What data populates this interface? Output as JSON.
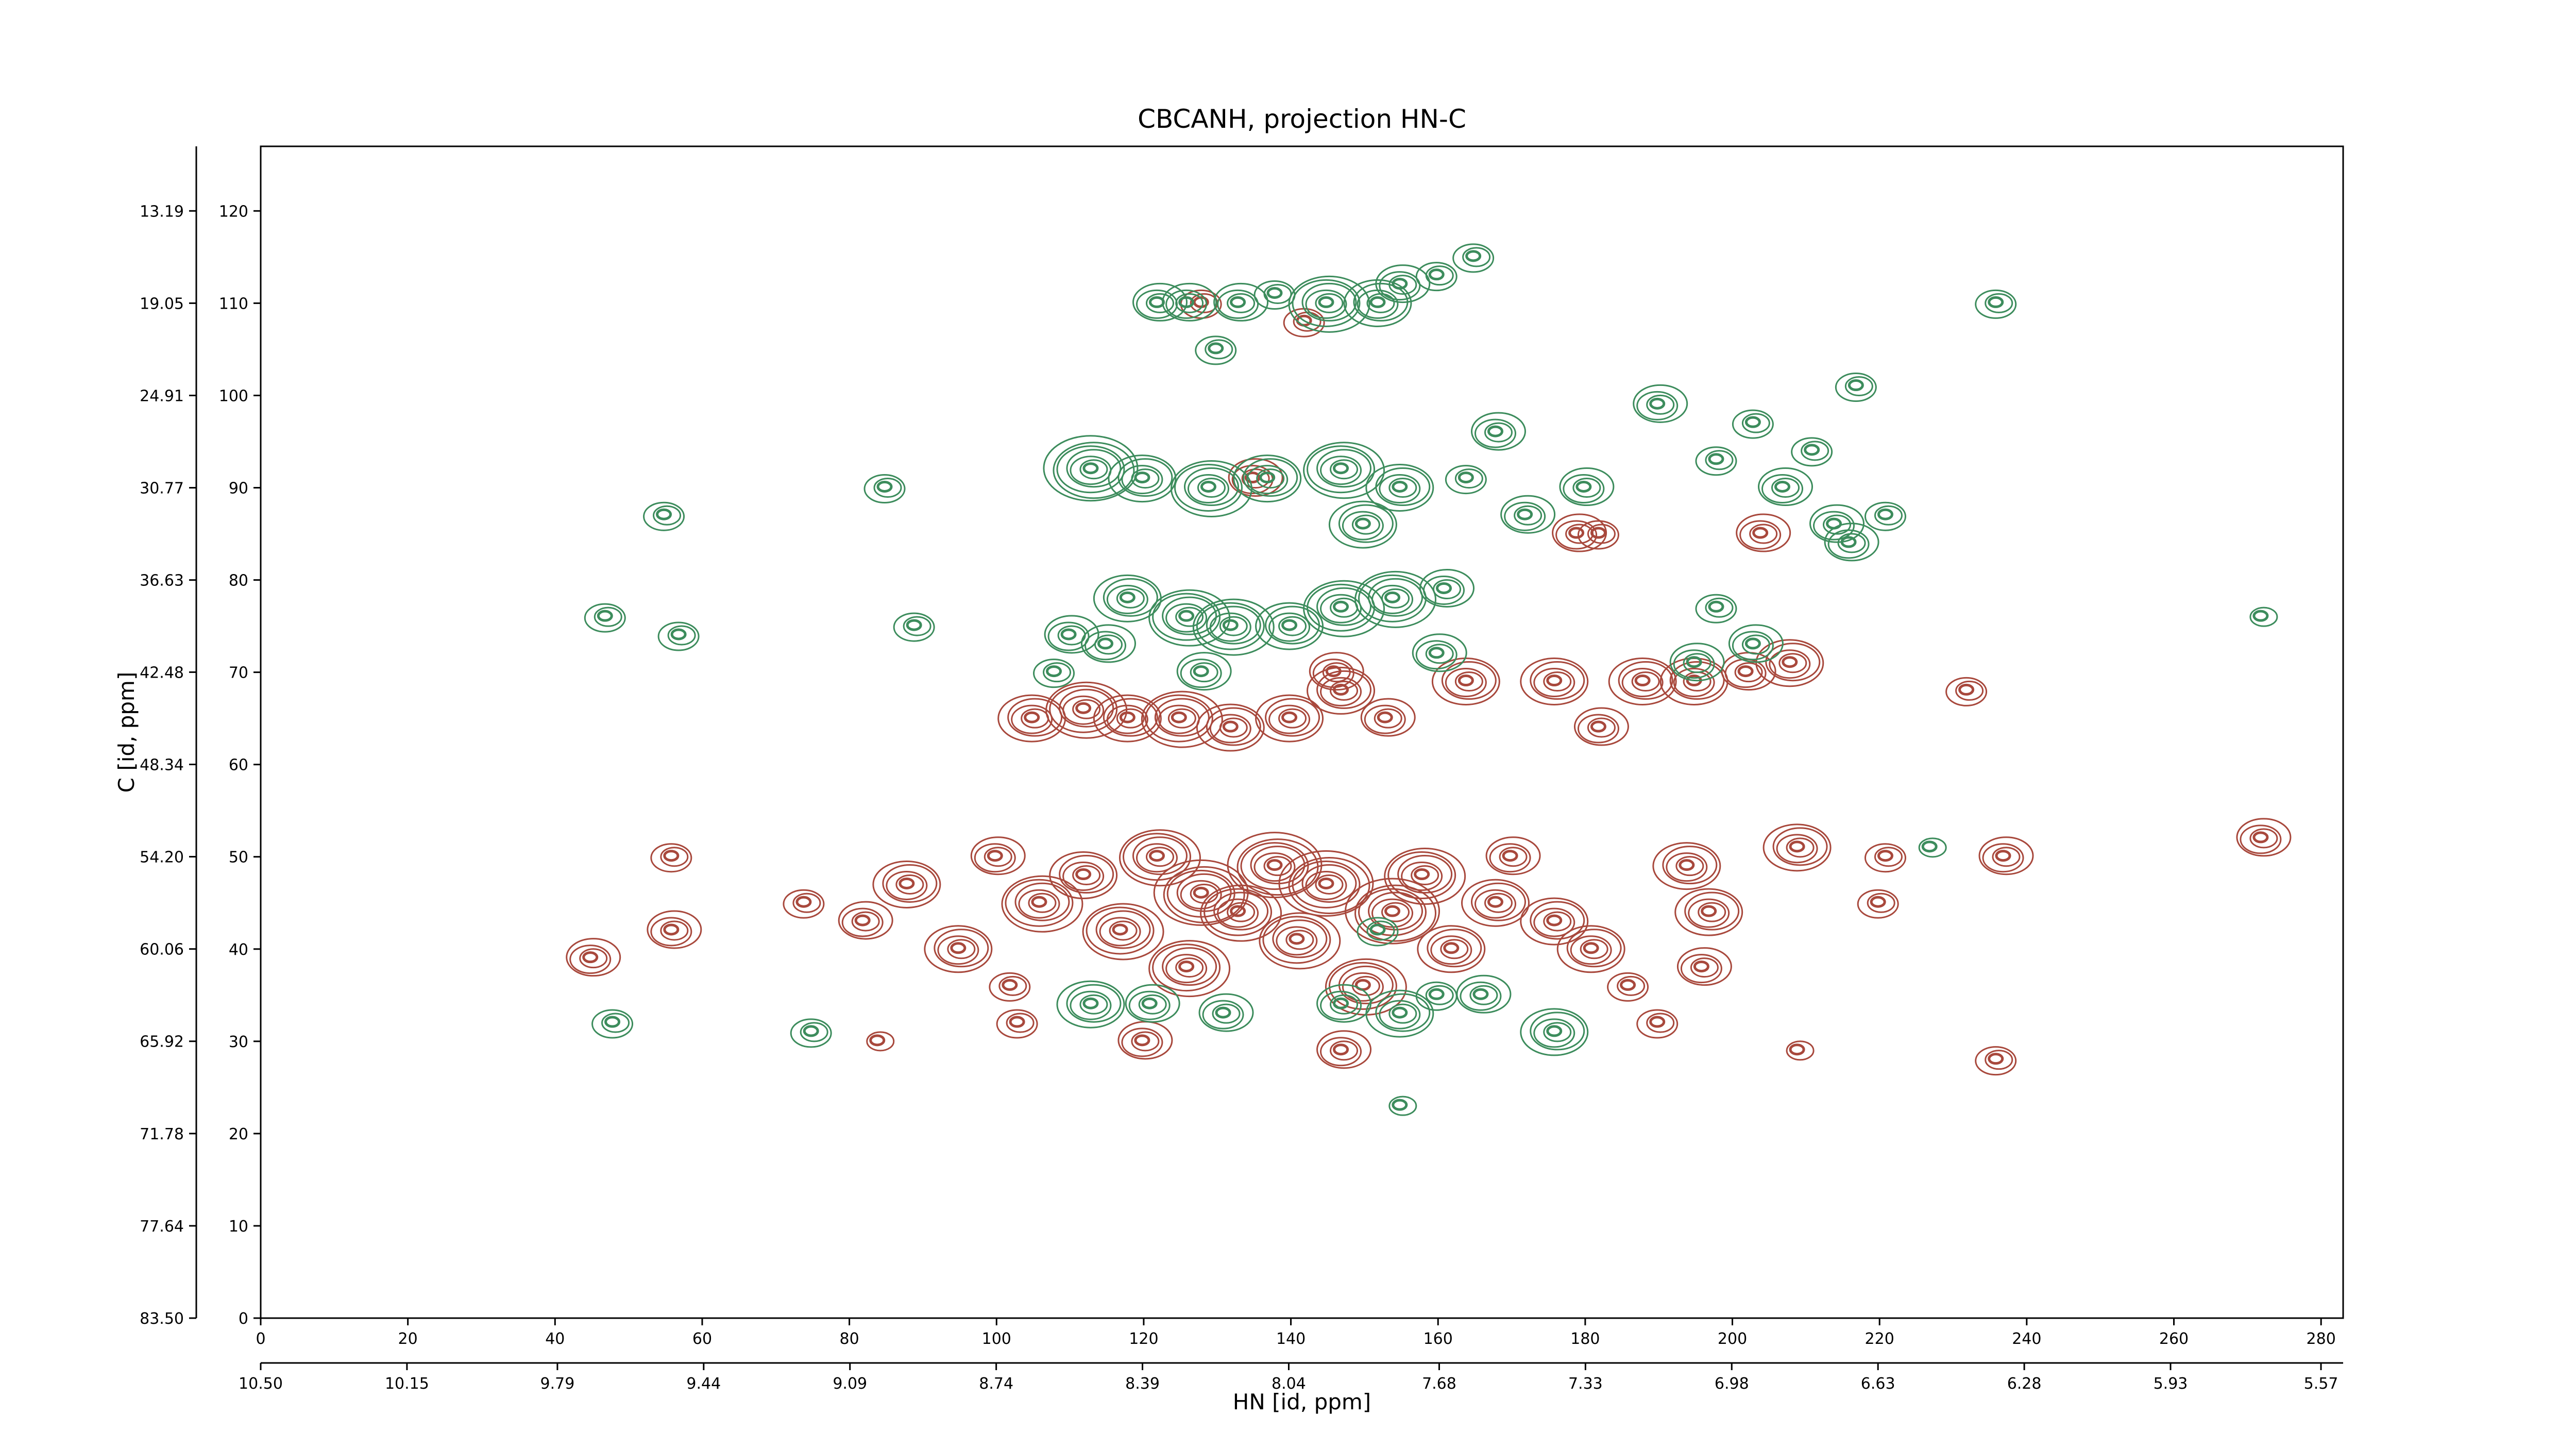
{
  "chart_data": {
    "type": "contour",
    "title": "CBCANH, projection HN-C",
    "x_label": "HN [id, ppm]",
    "y_label": "C [id, ppm]",
    "xlim": [
      0,
      283
    ],
    "ylim": [
      0,
      127
    ],
    "xticks": [
      0,
      20,
      40,
      60,
      80,
      100,
      120,
      140,
      160,
      180,
      200,
      220,
      240,
      260,
      280
    ],
    "yticks": [
      0,
      10,
      20,
      30,
      40,
      50,
      60,
      70,
      80,
      90,
      100,
      110,
      120
    ],
    "x2lim": [
      10.5,
      5.517
    ],
    "x2ticks": [
      {
        "value": 10.5,
        "label": "10.50"
      },
      10.15,
      9.79,
      9.44,
      9.09,
      8.74,
      8.39,
      8.04,
      7.68,
      7.33,
      6.98,
      6.63,
      6.28,
      5.93,
      5.57
    ],
    "y2lim": [
      83.5,
      9.09
    ],
    "y2ticks": [
      {
        "value": 83.5,
        "label": "83.50"
      },
      77.64,
      71.78,
      65.92,
      60.06,
      {
        "value": 54.2,
        "label": "54.20"
      },
      48.34,
      42.48,
      36.63,
      30.77,
      24.91,
      19.05,
      13.19
    ],
    "series": [
      {
        "color": "#a8483c",
        "x": [
          45,
          56,
          56,
          74,
          82,
          88,
          95,
          100,
          102,
          106,
          112,
          117,
          122,
          126,
          128,
          133,
          138,
          141,
          145,
          150,
          154,
          158,
          162,
          168,
          170,
          176,
          181,
          186,
          194,
          197,
          196,
          209,
          220,
          221,
          237,
          272,
          105,
          112,
          118,
          125,
          132,
          140,
          147,
          153,
          164,
          176,
          182,
          188,
          195,
          202,
          208,
          232,
          146,
          128,
          142,
          135,
          179,
          182,
          204,
          103,
          120,
          147,
          190,
          209,
          236,
          84
        ],
        "y": [
          39,
          50,
          42,
          45,
          43,
          47,
          40,
          50,
          36,
          45,
          48,
          42,
          50,
          38,
          46,
          44,
          49,
          41,
          47,
          36,
          44,
          48,
          40,
          45,
          50,
          43,
          40,
          36,
          49,
          44,
          38,
          51,
          45,
          50,
          50,
          52,
          65,
          66,
          65,
          65,
          64,
          65,
          68,
          65,
          69,
          69,
          64,
          69,
          69,
          70,
          71,
          68,
          70,
          110,
          108,
          91,
          85,
          85,
          85,
          32,
          30,
          29,
          32,
          29,
          28,
          30
        ],
        "levels": [
          4,
          3,
          4,
          3,
          4,
          5,
          5,
          4,
          3,
          6,
          5,
          6,
          6,
          6,
          7,
          6,
          7,
          6,
          7,
          6,
          7,
          6,
          5,
          5,
          4,
          5,
          5,
          3,
          5,
          5,
          4,
          5,
          3,
          3,
          4,
          4,
          5,
          6,
          5,
          6,
          5,
          5,
          5,
          4,
          5,
          5,
          4,
          5,
          5,
          4,
          5,
          3,
          4,
          3,
          3,
          4,
          4,
          3,
          4,
          3,
          4,
          4,
          3,
          2,
          3,
          2
        ]
      },
      {
        "color": "#3c8c5c",
        "x": [
          122,
          126,
          133,
          138,
          145,
          152,
          155,
          160,
          165,
          130,
          236,
          190,
          203,
          217,
          211,
          47,
          57,
          113,
          120,
          129,
          137,
          147,
          155,
          150,
          164,
          168,
          172,
          180,
          198,
          207,
          214,
          216,
          221,
          198,
          115,
          118,
          126,
          132,
          140,
          147,
          154,
          161,
          128,
          108,
          110,
          160,
          195,
          203,
          89,
          55,
          85,
          113,
          121,
          131,
          147,
          155,
          160,
          166,
          176,
          75,
          48,
          152,
          227,
          272,
          155
        ],
        "y": [
          110,
          110,
          110,
          111,
          110,
          110,
          112,
          113,
          115,
          105,
          110,
          99,
          97,
          101,
          94,
          76,
          74,
          92,
          91,
          90,
          91,
          92,
          90,
          86,
          91,
          96,
          87,
          90,
          93,
          90,
          86,
          84,
          87,
          77,
          73,
          78,
          76,
          75,
          75,
          77,
          78,
          79,
          70,
          70,
          74,
          72,
          71,
          73,
          75,
          87,
          90,
          34,
          34,
          33,
          34,
          33,
          35,
          35,
          31,
          31,
          32,
          42,
          51,
          76,
          23
        ],
        "levels": [
          4,
          4,
          4,
          3,
          6,
          5,
          4,
          3,
          3,
          3,
          3,
          4,
          3,
          3,
          3,
          3,
          3,
          7,
          5,
          6,
          5,
          6,
          5,
          5,
          3,
          4,
          4,
          4,
          3,
          4,
          4,
          4,
          3,
          3,
          4,
          5,
          6,
          6,
          5,
          6,
          6,
          4,
          4,
          3,
          4,
          4,
          4,
          4,
          3,
          3,
          3,
          5,
          4,
          4,
          4,
          5,
          3,
          4,
          5,
          3,
          3,
          3,
          2,
          2,
          2
        ]
      }
    ]
  }
}
